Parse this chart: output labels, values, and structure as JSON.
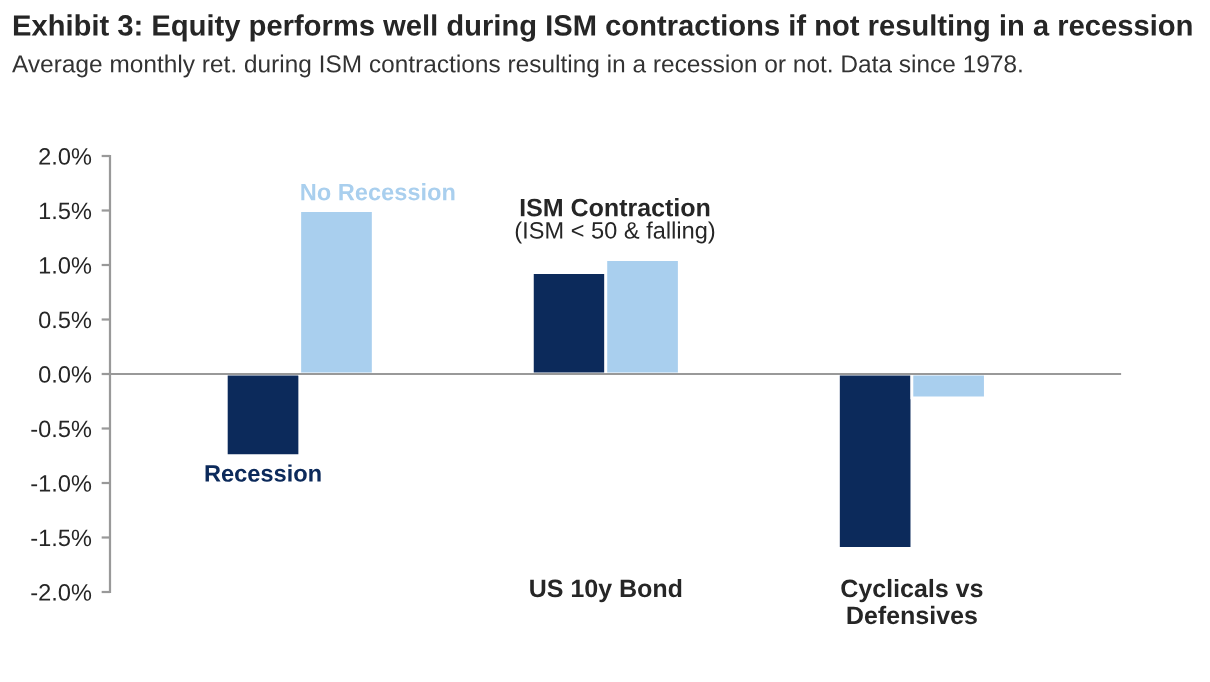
{
  "chart_data": {
    "type": "bar",
    "title": "Exhibit 3: Equity performs well during ISM contractions if not resulting in a recession",
    "subtitle": "Average monthly ret. during ISM contractions resulting in a recession or not. Data since 1978.",
    "categories": [
      null,
      "US 10y Bond",
      "Cyclicals vs\nDefensives"
    ],
    "series": [
      {
        "name": "Recession",
        "color": "#0c2a5b",
        "values": [
          -0.75,
          0.93,
          -1.6
        ]
      },
      {
        "name": "No Recession",
        "color": "#a9cfee",
        "values": [
          1.5,
          1.05,
          -0.22
        ]
      }
    ],
    "annotations": [
      "ISM Contraction\n(ISM < 50 & falling)"
    ],
    "ylim": [
      -2,
      2
    ],
    "yticks": [
      {
        "value": -2,
        "label": "-2.0%"
      },
      {
        "value": -1.5,
        "label": "-1.5%"
      },
      {
        "value": -1,
        "label": "-1.0%"
      },
      {
        "value": -0.5,
        "label": "-0.5%"
      },
      {
        "value": 0,
        "label": "0.0%"
      },
      {
        "value": 0.5,
        "label": "0.5%"
      },
      {
        "value": 1,
        "label": "1.0%"
      },
      {
        "value": 1.5,
        "label": "1.5%"
      },
      {
        "value": 2,
        "label": "2.0%"
      }
    ],
    "legend": false
  }
}
